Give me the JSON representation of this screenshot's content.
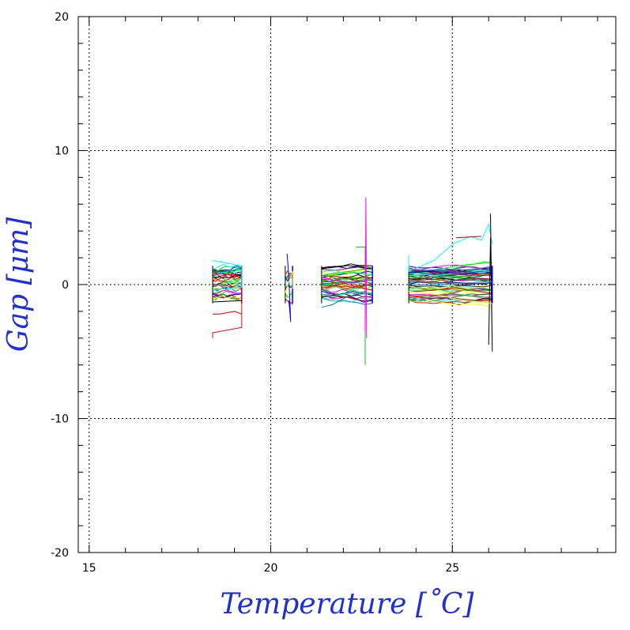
{
  "chart_data": {
    "type": "line",
    "title": "",
    "xlabel": "Temperature [˚C]",
    "ylabel": "Gap [μm]",
    "xlim": [
      14.7,
      29.5
    ],
    "ylim": [
      -20,
      20
    ],
    "xticks": [
      15,
      20,
      25
    ],
    "yticks": [
      20,
      10,
      0,
      -10,
      -20
    ],
    "xtick_labels": [
      "15",
      "20",
      "25"
    ],
    "ytick_labels": [
      "20",
      "10",
      "0",
      "-10",
      "-20"
    ],
    "grid": true,
    "grid_x": [
      15,
      20,
      25
    ],
    "grid_y": [
      10,
      0,
      -10
    ],
    "legend": "none",
    "series_colors": [
      "#000000",
      "#ff0000",
      "#00c800",
      "#0000ff",
      "#00ffff",
      "#ff00ff",
      "#ffff00",
      "#c00000",
      "#00ff00",
      "#008080"
    ],
    "clusters": [
      {
        "x_range": [
          18.4,
          19.2
        ],
        "y_range": [
          -4.0,
          1.8
        ],
        "series_count": 40
      },
      {
        "x_range": [
          20.4,
          20.6
        ],
        "y_range": [
          -2.8,
          2.3
        ],
        "series_count": 10
      },
      {
        "x_range": [
          21.4,
          22.8
        ],
        "y_range": [
          -6.0,
          6.5
        ],
        "series_count": 40
      },
      {
        "x_range": [
          23.8,
          26.1
        ],
        "y_range": [
          -5.0,
          5.3
        ],
        "series_count": 50
      }
    ],
    "series": [
      {
        "values": [
          [
            18.4,
            -4.0
          ],
          [
            18.4,
            -3.6
          ],
          [
            19.2,
            -3.2
          ],
          [
            19.2,
            1.2
          ]
        ]
      },
      {
        "values": [
          [
            18.4,
            1.8
          ],
          [
            19.2,
            1.4
          ],
          [
            19.2,
            -0.2
          ],
          [
            18.4,
            -0.4
          ]
        ]
      },
      {
        "values": [
          [
            18.4,
            -2.2
          ],
          [
            18.6,
            -2.2
          ],
          [
            19.0,
            -2.0
          ],
          [
            19.2,
            -2.2
          ]
        ]
      },
      {
        "values": [
          [
            18.4,
            -1.3
          ],
          [
            19.2,
            -1.2
          ]
        ]
      },
      {
        "values": [
          [
            20.45,
            2.3
          ],
          [
            20.5,
            0.5
          ],
          [
            20.55,
            -2.8
          ],
          [
            20.5,
            -1.2
          ]
        ]
      },
      {
        "values": [
          [
            20.4,
            -0.6
          ],
          [
            20.6,
            1.0
          ],
          [
            20.6,
            -0.3
          ]
        ]
      },
      {
        "values": [
          [
            21.4,
            -1.7
          ],
          [
            21.7,
            -1.5
          ],
          [
            22.1,
            -0.9
          ],
          [
            22.4,
            -0.7
          ],
          [
            22.6,
            -0.5
          ]
        ]
      },
      {
        "values": [
          [
            22.35,
            2.8
          ],
          [
            22.6,
            2.8
          ],
          [
            22.6,
            -6.0
          ],
          [
            22.6,
            1.4
          ]
        ]
      },
      {
        "values": [
          [
            22.6,
            -3.5
          ],
          [
            22.62,
            6.5
          ],
          [
            22.64,
            -4.0
          ]
        ]
      },
      {
        "values": [
          [
            21.5,
            0.6
          ],
          [
            21.9,
            0.8
          ],
          [
            22.3,
            0.9
          ],
          [
            22.8,
            0.7
          ]
        ]
      },
      {
        "values": [
          [
            21.5,
            -0.3
          ],
          [
            22.0,
            0.1
          ],
          [
            22.4,
            -0.2
          ],
          [
            22.8,
            0.1
          ]
        ]
      },
      {
        "values": [
          [
            23.8,
            2.2
          ],
          [
            23.8,
            1.0
          ],
          [
            24.5,
            1.8
          ],
          [
            25.0,
            3.0
          ],
          [
            25.5,
            3.6
          ],
          [
            25.8,
            3.3
          ],
          [
            26.0,
            4.5
          ],
          [
            26.1,
            3.0
          ]
        ]
      },
      {
        "values": [
          [
            25.1,
            3.5
          ],
          [
            25.8,
            3.6
          ]
        ]
      },
      {
        "values": [
          [
            26.05,
            5.3
          ],
          [
            26.1,
            -5.0
          ],
          [
            26.05,
            3.5
          ],
          [
            26.0,
            -4.5
          ]
        ]
      },
      {
        "values": [
          [
            23.8,
            0.9
          ],
          [
            24.5,
            1.0
          ],
          [
            25.3,
            0.8
          ],
          [
            26.1,
            0.9
          ]
        ]
      },
      {
        "values": [
          [
            23.8,
            -0.5
          ],
          [
            24.5,
            -0.7
          ],
          [
            25.3,
            -1.2
          ],
          [
            26.1,
            -1.4
          ]
        ]
      },
      {
        "values": [
          [
            23.8,
            0.2
          ],
          [
            24.6,
            0.1
          ],
          [
            25.2,
            0.4
          ],
          [
            26.1,
            0.2
          ]
        ]
      }
    ]
  }
}
